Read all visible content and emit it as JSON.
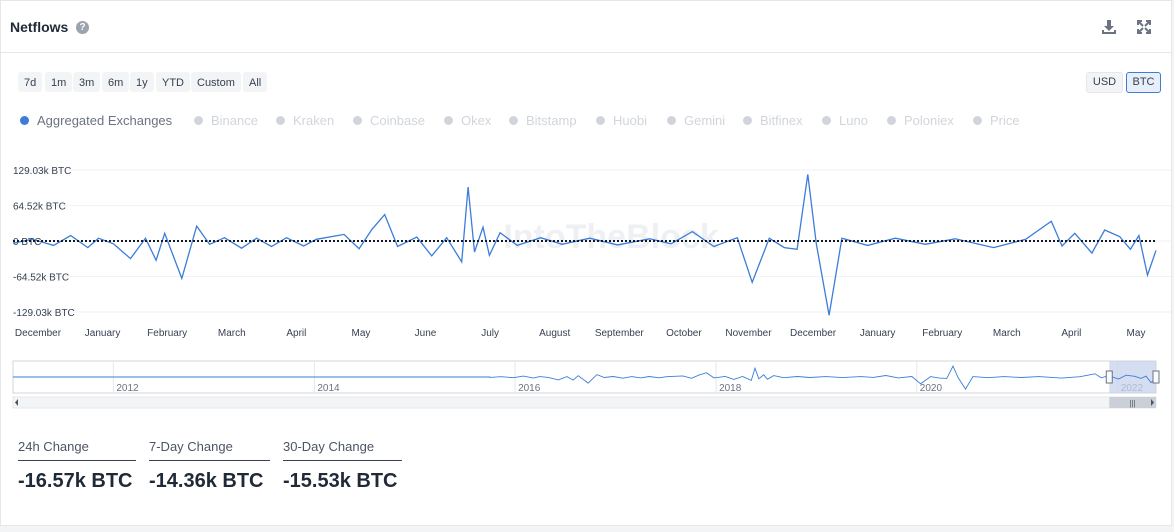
{
  "header": {
    "title": "Netflows",
    "help_icon": "question-circle-icon",
    "download_icon": "download-icon",
    "expand_icon": "expand-icon"
  },
  "ranges": [
    "7d",
    "1m",
    "3m",
    "6m",
    "1y",
    "YTD",
    "Custom",
    "All"
  ],
  "units": {
    "usd": "USD",
    "btc": "BTC",
    "selected": "BTC"
  },
  "legend": [
    {
      "label": "Aggregated Exchanges",
      "active": true
    },
    {
      "label": "Binance",
      "active": false
    },
    {
      "label": "Kraken",
      "active": false
    },
    {
      "label": "Coinbase",
      "active": false
    },
    {
      "label": "Okex",
      "active": false
    },
    {
      "label": "Bitstamp",
      "active": false
    },
    {
      "label": "Huobi",
      "active": false
    },
    {
      "label": "Gemini",
      "active": false
    },
    {
      "label": "Bitfinex",
      "active": false
    },
    {
      "label": "Luno",
      "active": false
    },
    {
      "label": "Poloniex",
      "active": false
    },
    {
      "label": "Price",
      "active": false
    }
  ],
  "colors": {
    "accent": "#3b7dd8",
    "inactive": "#d1d5db",
    "navigator_fill": "#c7d2ec"
  },
  "watermark": "IntoTheBlock",
  "chart_data": {
    "type": "line",
    "y_ticks": [
      "129.03k BTC",
      "64.52k BTC",
      "0 BTC",
      "-64.52k BTC",
      "-129.03k BTC"
    ],
    "y_tick_values": [
      129.03,
      64.52,
      0,
      -64.52,
      -129.03
    ],
    "ylim": [
      -129.03,
      129.03
    ],
    "y_unit": "k BTC",
    "x_ticks": [
      "December",
      "January",
      "February",
      "March",
      "April",
      "May",
      "June",
      "July",
      "August",
      "September",
      "October",
      "November",
      "December",
      "January",
      "February",
      "March",
      "April",
      "May"
    ],
    "x_range": [
      "2020-12-01",
      "2022-05-20"
    ],
    "zero_line": "dotted",
    "series": [
      {
        "points": [
          [
            "2020-12-01",
            -4
          ],
          [
            "2020-12-10",
            3
          ],
          [
            "2020-12-20",
            -8
          ],
          [
            "2020-12-28",
            10
          ],
          [
            "2021-01-05",
            -12
          ],
          [
            "2021-01-10",
            5
          ],
          [
            "2021-01-17",
            -5
          ],
          [
            "2021-01-25",
            -32
          ],
          [
            "2021-02-01",
            5
          ],
          [
            "2021-02-06",
            -35
          ],
          [
            "2021-02-10",
            14
          ],
          [
            "2021-02-18",
            -68
          ],
          [
            "2021-02-25",
            27
          ],
          [
            "2021-03-03",
            -6
          ],
          [
            "2021-03-10",
            6
          ],
          [
            "2021-03-18",
            -13
          ],
          [
            "2021-03-25",
            5
          ],
          [
            "2021-04-01",
            -10
          ],
          [
            "2021-04-08",
            6
          ],
          [
            "2021-04-16",
            -9
          ],
          [
            "2021-04-22",
            3
          ],
          [
            "2021-05-05",
            12
          ],
          [
            "2021-05-12",
            -14
          ],
          [
            "2021-05-18",
            21
          ],
          [
            "2021-05-24",
            48
          ],
          [
            "2021-05-30",
            -10
          ],
          [
            "2021-06-08",
            7
          ],
          [
            "2021-06-15",
            -27
          ],
          [
            "2021-06-22",
            6
          ],
          [
            "2021-06-29",
            -38
          ],
          [
            "2021-07-02",
            98
          ],
          [
            "2021-07-05",
            -20
          ],
          [
            "2021-07-09",
            25
          ],
          [
            "2021-07-12",
            -26
          ],
          [
            "2021-07-17",
            15
          ],
          [
            "2021-07-25",
            -8
          ],
          [
            "2021-08-05",
            6
          ],
          [
            "2021-08-15",
            -6
          ],
          [
            "2021-08-28",
            5
          ],
          [
            "2021-09-10",
            -7
          ],
          [
            "2021-09-25",
            4
          ],
          [
            "2021-10-05",
            -5
          ],
          [
            "2021-10-15",
            17
          ],
          [
            "2021-10-25",
            -10
          ],
          [
            "2021-11-05",
            6
          ],
          [
            "2021-11-12",
            -75
          ],
          [
            "2021-11-20",
            5
          ],
          [
            "2021-11-27",
            -12
          ],
          [
            "2021-12-03",
            -15
          ],
          [
            "2021-12-08",
            121
          ],
          [
            "2021-12-12",
            -5
          ],
          [
            "2021-12-18",
            -135
          ],
          [
            "2021-12-24",
            5
          ],
          [
            "2022-01-05",
            -8
          ],
          [
            "2022-01-18",
            5
          ],
          [
            "2022-02-01",
            -6
          ],
          [
            "2022-02-15",
            4
          ],
          [
            "2022-03-05",
            -12
          ],
          [
            "2022-03-20",
            3
          ],
          [
            "2022-04-01",
            36
          ],
          [
            "2022-04-06",
            -9
          ],
          [
            "2022-04-12",
            14
          ],
          [
            "2022-04-20",
            -22
          ],
          [
            "2022-04-26",
            20
          ],
          [
            "2022-05-03",
            8
          ],
          [
            "2022-05-08",
            -15
          ],
          [
            "2022-05-12",
            10
          ],
          [
            "2022-05-16",
            -62
          ],
          [
            "2022-05-20",
            -17
          ]
        ]
      }
    ],
    "navigator": {
      "x_ticks": [
        "2012",
        "2014",
        "2016",
        "2018",
        "2020",
        "2022"
      ],
      "x_range": [
        "2011-01-01",
        "2022-05-20"
      ],
      "selected_range": [
        "2021-12-01",
        "2022-05-20"
      ]
    }
  },
  "stats": [
    {
      "label": "24h Change",
      "value": "-16.57k BTC"
    },
    {
      "label": "7-Day Change",
      "value": "-14.36k BTC"
    },
    {
      "label": "30-Day Change",
      "value": "-15.53k BTC"
    }
  ]
}
